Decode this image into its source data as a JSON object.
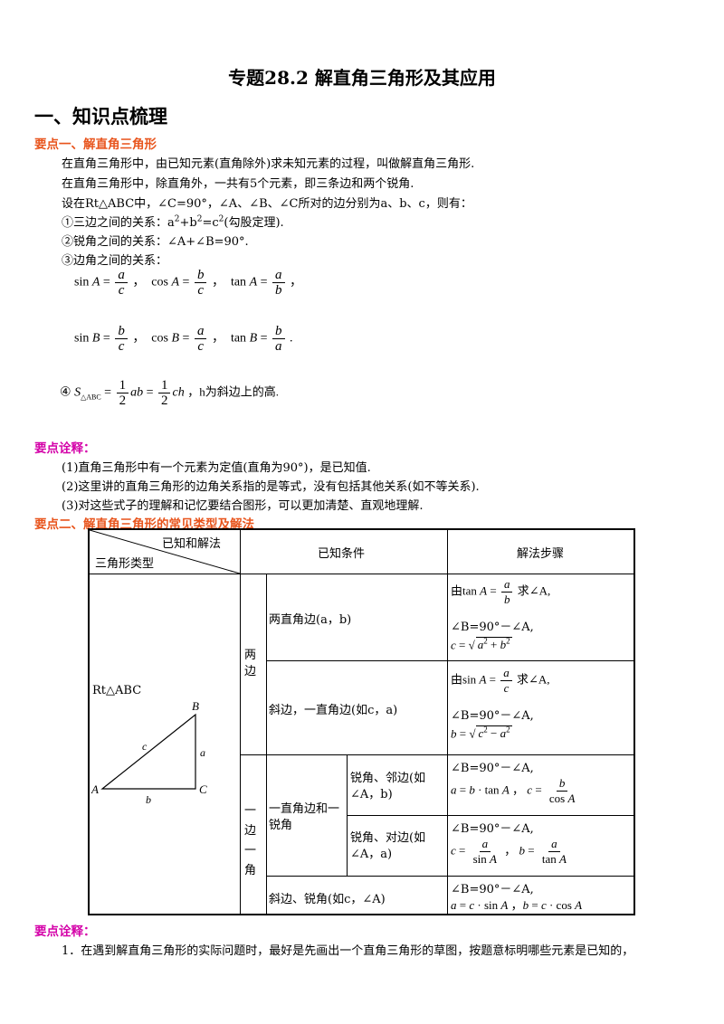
{
  "title": "专题28.2 解直角三角形及其应用",
  "section1": "一、知识点梳理",
  "point1": {
    "heading": "要点一、解直角三角形",
    "lines": [
      "在直角三角形中，由已知元素(直角除外)求未知元素的过程，叫做解直角三角形.",
      "在直角三角形中，除直角外，一共有5个元素，即三条边和两个锐角.",
      "设在Rt△ABC中，∠C=90°，∠A、∠B、∠C所对的边分别为a、b、c，则有：",
      "③边角之间的关系："
    ],
    "rel1_prefix": "①三边之间的关系：",
    "rel1_suffix": "(勾股定理).",
    "rel2": "②锐角之间的关系：∠A+∠B=90°.",
    "area_prefix": "④",
    "area_suffix": "，h为斜边上的高."
  },
  "note1": {
    "heading": "要点诠释：",
    "lines": [
      "(1)直角三角形中有一个元素为定值(直角为90°)，是已知值.",
      "(2)这里讲的直角三角形的边角关系指的是等式，没有包括其他关系(如不等关系).",
      "(3)对这些式子的理解和记忆要结合图形，可以更加清楚、直观地理解."
    ]
  },
  "point2": {
    "heading": "要点二、解直角三角形的常见类型及解法",
    "header_top": "已知和解法",
    "header_bottom": "三角形类型",
    "col_known": "已知条件",
    "col_steps": "解法步骤",
    "triangle_label": "Rt△ABC",
    "group_two_sides": "两边",
    "group_side_angle": "一边一角",
    "sub_one_side_one_angle": "一直角边和一锐角",
    "rows": [
      {
        "known": "两直角边(a，b)",
        "step2": "∠B=90°－∠A,"
      },
      {
        "known": "斜边，一直角边(如c，a)",
        "step2": "∠B=90°－∠A,"
      },
      {
        "known": "锐角、邻边(如∠A，b)",
        "step1": "∠B=90°－∠A,"
      },
      {
        "known": "锐角、对边(如∠A，a)",
        "step1": "∠B=90°－∠A,"
      },
      {
        "known": "斜边、锐角(如c，∠A)",
        "step1": "∠B=90°－∠A,"
      }
    ],
    "step_you": "由",
    "step_qiu": "求∠A,"
  },
  "note2": {
    "heading": "要点诠释：",
    "line1": "1．在遇到解直角三角形的实际问题时，最好是先画出一个直角三角形的草图，按题意标明哪些元素是已知的，"
  }
}
